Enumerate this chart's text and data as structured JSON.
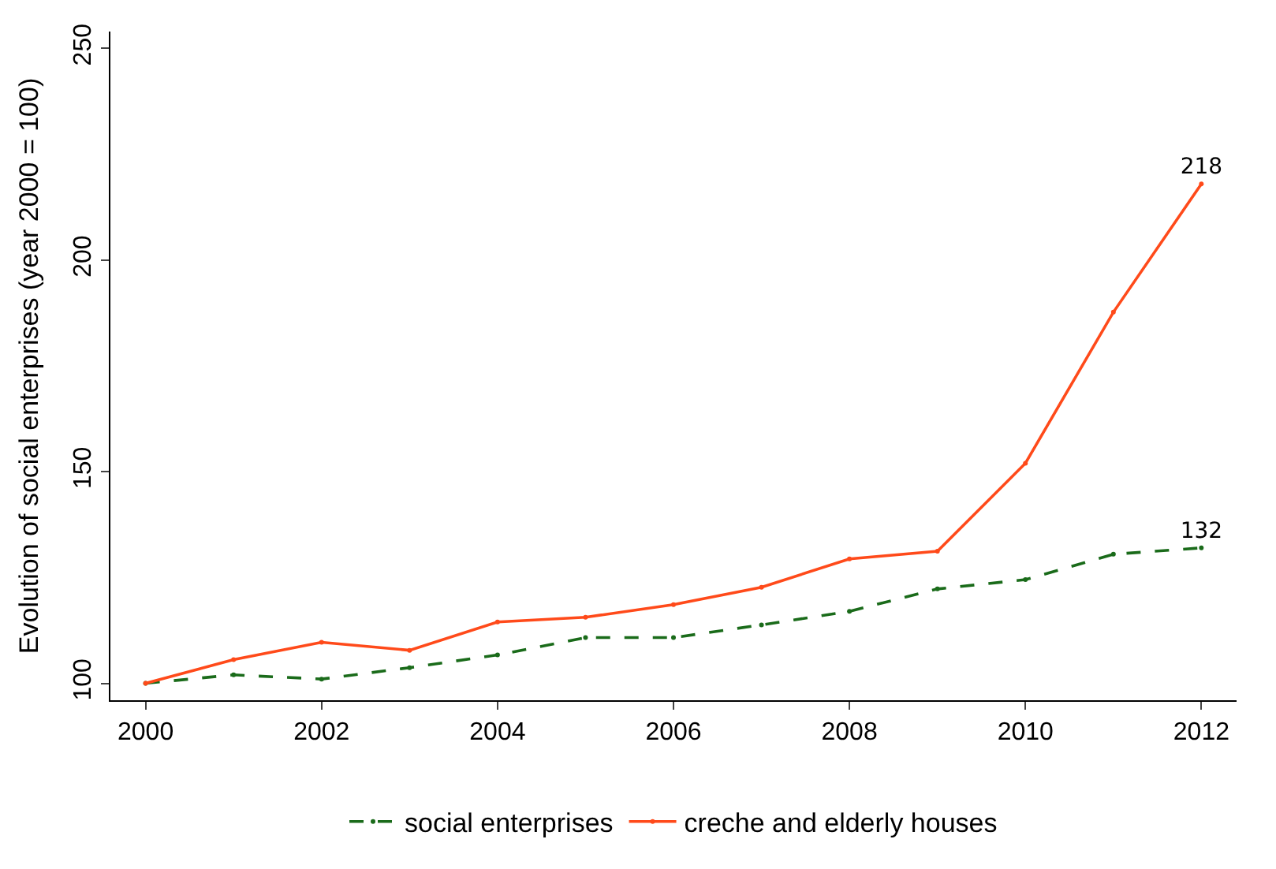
{
  "chart_data": {
    "type": "line",
    "ylabel": "Evolution of social enterprises (year 2000 = 100)",
    "x": [
      2000,
      2001,
      2002,
      2003,
      2004,
      2005,
      2006,
      2007,
      2008,
      2009,
      2010,
      2011,
      2012
    ],
    "series": [
      {
        "name": "social enterprises",
        "color": "#1a6b1a",
        "line_style": "dashed",
        "values": [
          100,
          102,
          101,
          103.7,
          106.7,
          110.8,
          110.8,
          113.8,
          117,
          122.3,
          124.5,
          130.5,
          132
        ],
        "value_labels": [
          null,
          null,
          null,
          null,
          null,
          null,
          null,
          null,
          null,
          null,
          null,
          null,
          "132"
        ]
      },
      {
        "name": "creche and elderly houses",
        "color": "#ff4a1a",
        "line_style": "solid",
        "values": [
          100,
          105.6,
          109.7,
          107.8,
          114.5,
          115.6,
          118.6,
          122.7,
          129.4,
          131.2,
          152,
          187.7,
          218
        ],
        "value_labels": [
          null,
          null,
          null,
          null,
          null,
          null,
          null,
          null,
          null,
          null,
          null,
          null,
          "218"
        ]
      }
    ],
    "xlim": [
      1999.6,
      2012.4
    ],
    "xticks": [
      2000,
      2002,
      2004,
      2006,
      2008,
      2010,
      2012
    ],
    "ylim": [
      96,
      254
    ],
    "yticks": [
      100,
      150,
      200,
      250
    ],
    "legend": "bottom",
    "marker": "circle"
  }
}
